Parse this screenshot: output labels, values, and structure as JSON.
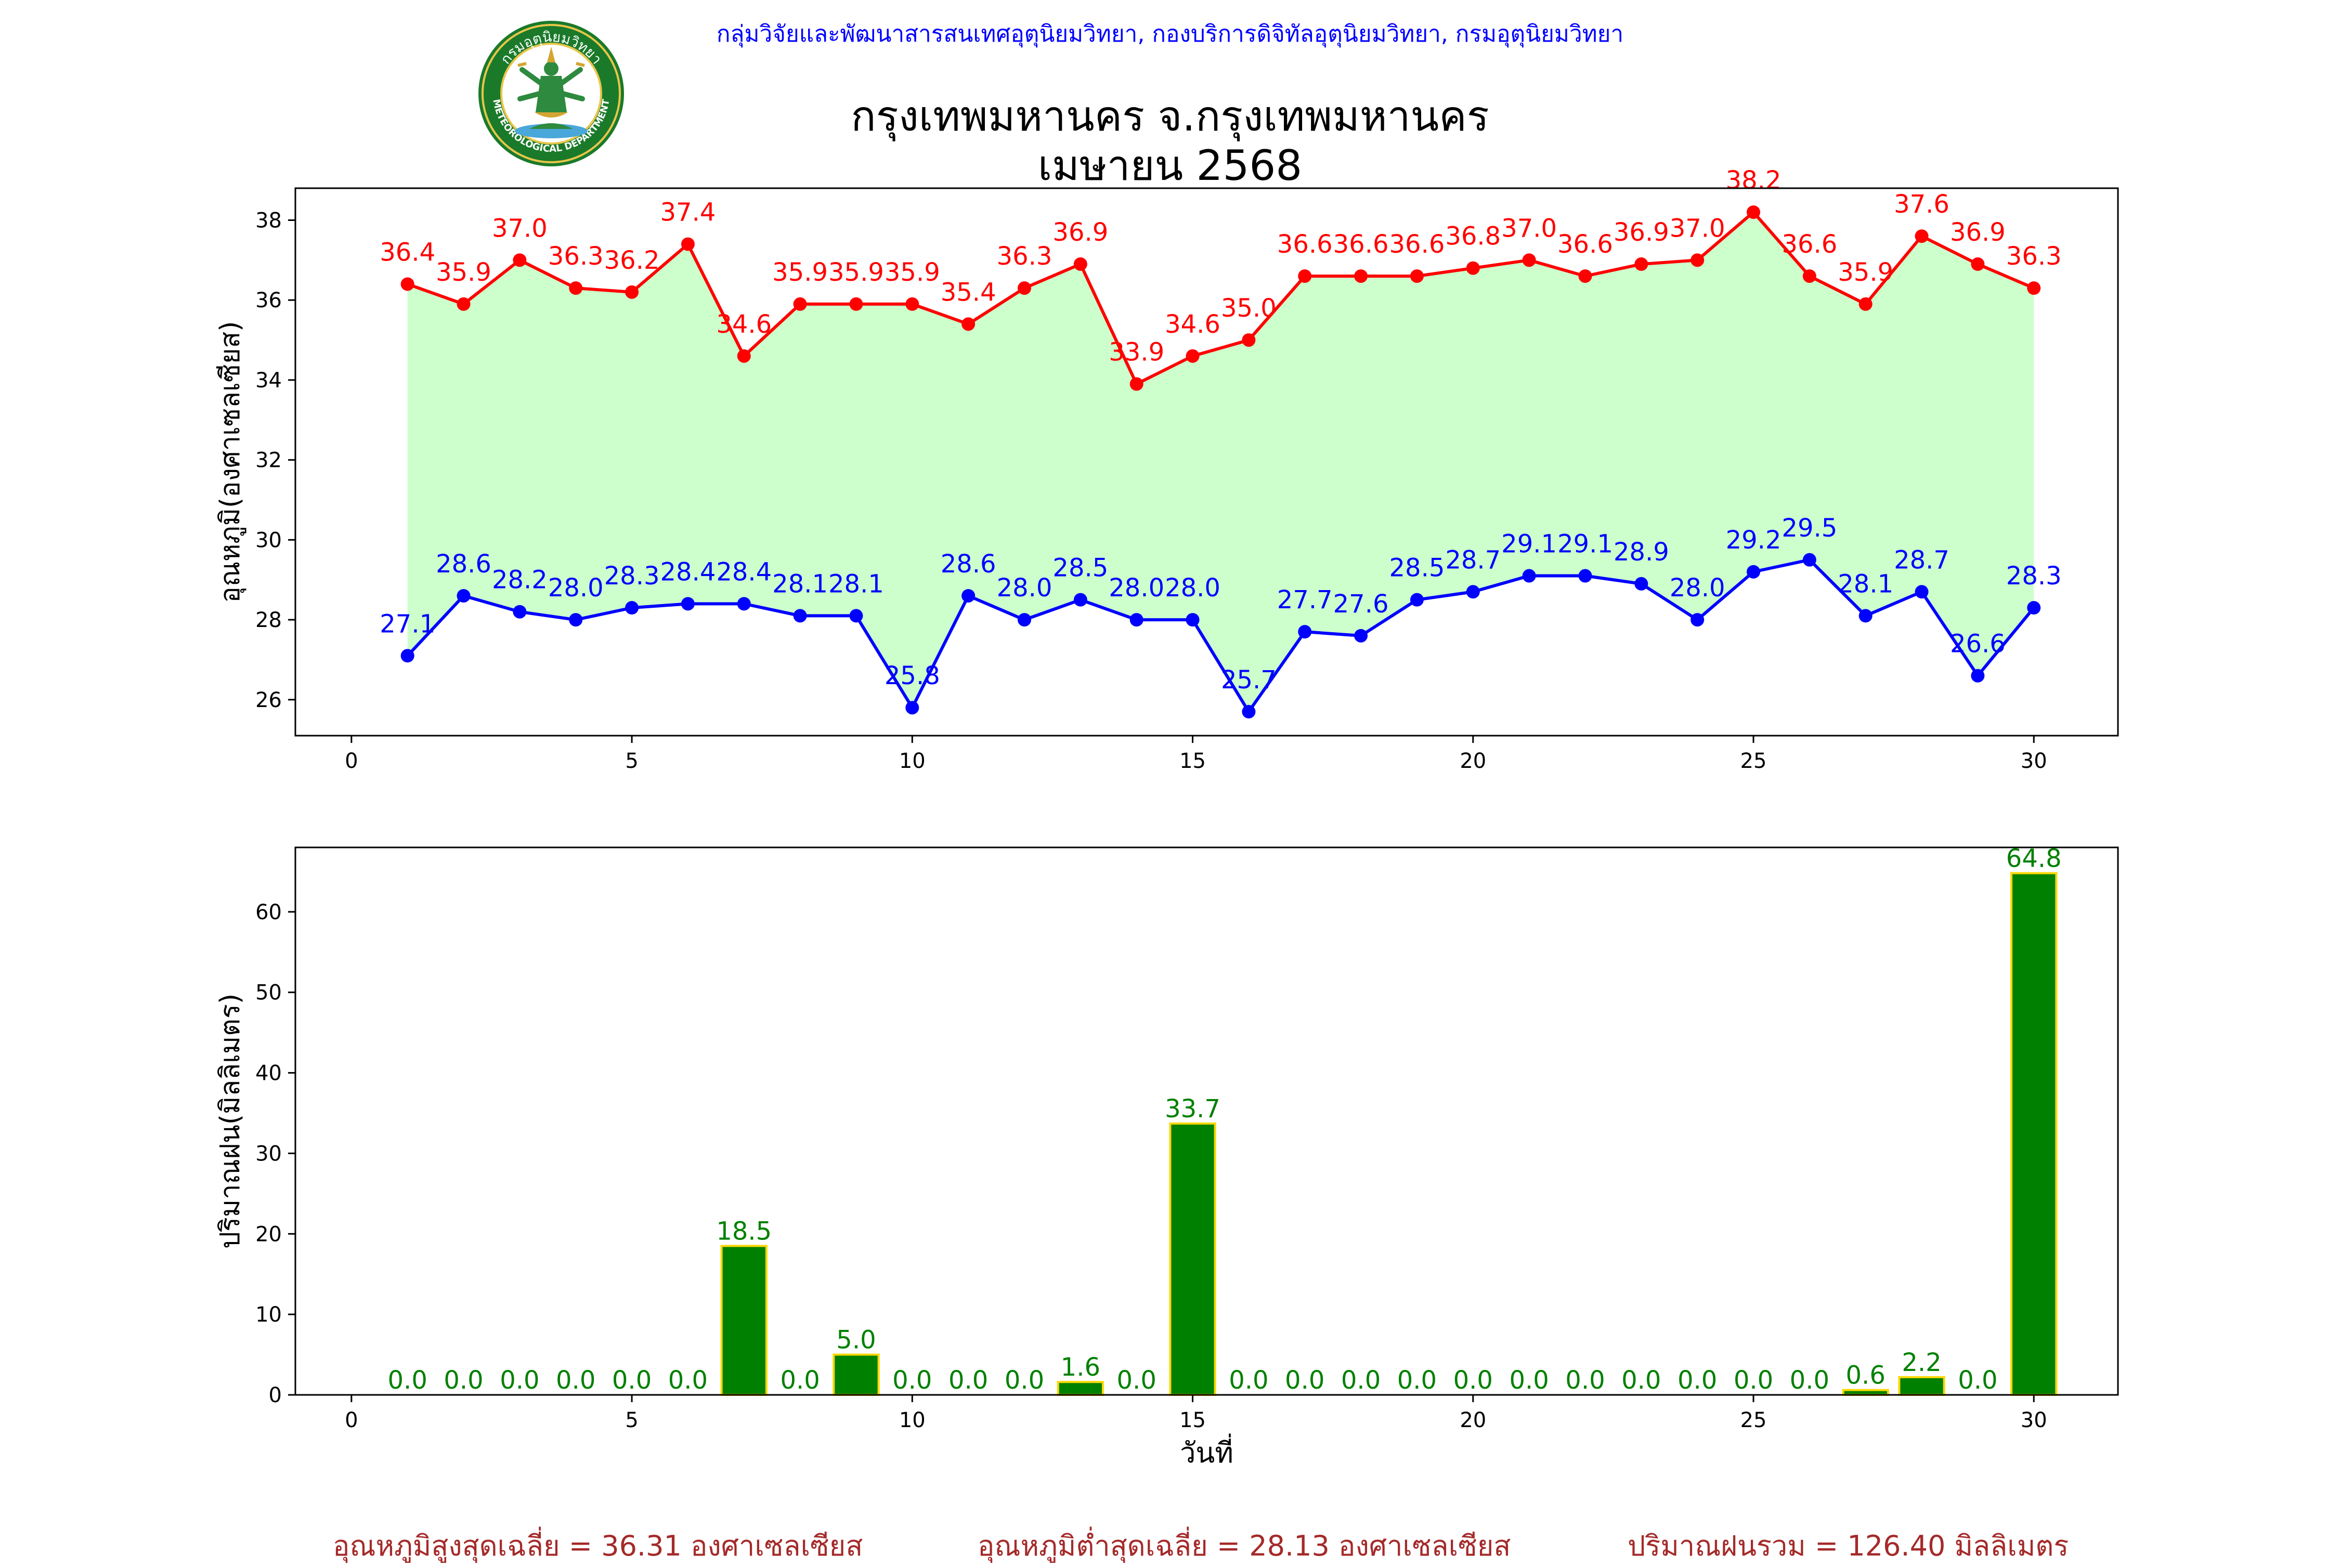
{
  "header": {
    "org": "กลุ่มวิจัยและพัฒนาสารสนเทศอุตุนิยมวิทยา, กองบริการดิจิทัลอุตุนิยมวิทยา, กรมอุตุนิยมวิทยา",
    "title": "กรุงเทพมหานคร จ.กรุงเทพมหานคร",
    "subtitle": "เมษายน 2568",
    "logo_text": "กรมอุตุนิยมวิทยา",
    "logo_text_en": "METEOROLOGICAL DEPARTMENT"
  },
  "colors": {
    "max_line": "#ff0000",
    "min_line": "#0000ff",
    "fill": "#ccffcc",
    "bar_fill": "#008000",
    "bar_edge": "#ffd700",
    "bar_label": "#008000",
    "summary": "#a52a2a"
  },
  "chart_data": [
    {
      "type": "line",
      "ylabel": "อุณหภูมิ(องศาเซลเซียส)",
      "xlabel": "",
      "xlim": [
        -1,
        31.5
      ],
      "ylim": [
        25.1,
        38.8
      ],
      "xticks": [
        0,
        5,
        10,
        15,
        20,
        25,
        30
      ],
      "yticks": [
        26,
        28,
        30,
        32,
        34,
        36,
        38
      ],
      "grid": false,
      "x": [
        1,
        2,
        3,
        4,
        5,
        6,
        7,
        8,
        9,
        10,
        11,
        12,
        13,
        14,
        15,
        16,
        17,
        18,
        19,
        20,
        21,
        22,
        23,
        24,
        25,
        26,
        27,
        28,
        29,
        30
      ],
      "series": [
        {
          "values": [
            36.4,
            35.9,
            37.0,
            36.3,
            36.2,
            37.4,
            34.6,
            35.9,
            35.9,
            35.9,
            35.4,
            36.3,
            36.9,
            33.9,
            34.6,
            35.0,
            36.6,
            36.6,
            36.6,
            36.8,
            37.0,
            36.6,
            36.9,
            37.0,
            38.2,
            36.6,
            35.9,
            37.6,
            36.9,
            36.3
          ],
          "labels": [
            "36.4",
            "35.9",
            "37.0",
            "36.3",
            "36.2",
            "37.4",
            "34.6",
            "35.9",
            "35.9",
            "35.9",
            "35.4",
            "36.3",
            "36.9",
            "33.9",
            "34.6",
            "35.0",
            "36.6",
            "36.6",
            "36.6",
            "36.8",
            "37.0",
            "36.6",
            "36.9",
            "37.0",
            "38.2",
            "36.6",
            "35.9",
            "37.6",
            "36.9",
            "36.3"
          ]
        },
        {
          "values": [
            27.1,
            28.6,
            28.2,
            28.0,
            28.3,
            28.4,
            28.4,
            28.1,
            28.1,
            25.8,
            28.6,
            28.0,
            28.5,
            28.0,
            28.0,
            25.7,
            27.7,
            27.6,
            28.5,
            28.7,
            29.1,
            29.1,
            28.9,
            28.0,
            29.2,
            29.5,
            28.1,
            28.7,
            26.6,
            28.3
          ],
          "labels": [
            "27.1",
            "28.6",
            "28.2",
            "28.0",
            "28.3",
            "28.4",
            "28.4",
            "28.1",
            "28.1",
            "25.8",
            "28.6",
            "28.0",
            "28.5",
            "28.0",
            "28.0",
            "25.7",
            "27.7",
            "27.6",
            "28.5",
            "28.7",
            "29.1",
            "29.1",
            "28.9",
            "28.0",
            "29.2",
            "29.5",
            "28.1",
            "28.7",
            "26.6",
            "28.3"
          ]
        }
      ],
      "xtick_labels": [
        "0",
        "5",
        "10",
        "15",
        "20",
        "25",
        "30"
      ],
      "ytick_labels": [
        "26",
        "28",
        "30",
        "32",
        "34",
        "36",
        "38"
      ]
    },
    {
      "type": "bar",
      "ylabel": "ปริมาณฝน(มิลลิเมตร)",
      "xlabel": "วันที่",
      "xlim": [
        -1,
        31.5
      ],
      "ylim": [
        0,
        68
      ],
      "xticks": [
        0,
        5,
        10,
        15,
        20,
        25,
        30
      ],
      "yticks": [
        0,
        10,
        20,
        30,
        40,
        50,
        60
      ],
      "grid": false,
      "x": [
        1,
        2,
        3,
        4,
        5,
        6,
        7,
        8,
        9,
        10,
        11,
        12,
        13,
        14,
        15,
        16,
        17,
        18,
        19,
        20,
        21,
        22,
        23,
        24,
        25,
        26,
        27,
        28,
        29,
        30
      ],
      "values": [
        0.0,
        0.0,
        0.0,
        0.0,
        0.0,
        0.0,
        18.5,
        0.0,
        5.0,
        0.0,
        0.0,
        0.0,
        1.6,
        0.0,
        33.7,
        0.0,
        0.0,
        0.0,
        0.0,
        0.0,
        0.0,
        0.0,
        0.0,
        0.0,
        0.0,
        0.0,
        0.6,
        2.2,
        0.0,
        64.8
      ],
      "labels": [
        "0.0",
        "0.0",
        "0.0",
        "0.0",
        "0.0",
        "0.0",
        "18.5",
        "0.0",
        "5.0",
        "0.0",
        "0.0",
        "0.0",
        "1.6",
        "0.0",
        "33.7",
        "0.0",
        "0.0",
        "0.0",
        "0.0",
        "0.0",
        "0.0",
        "0.0",
        "0.0",
        "0.0",
        "0.0",
        "0.0",
        "0.6",
        "2.2",
        "0.0",
        "64.8"
      ],
      "xtick_labels": [
        "0",
        "5",
        "10",
        "15",
        "20",
        "25",
        "30"
      ],
      "ytick_labels": [
        "0",
        "10",
        "20",
        "30",
        "40",
        "50",
        "60"
      ]
    }
  ],
  "summary": {
    "avg_max": "อุณหภูมิสูงสุดเฉลี่ย = 36.31 องศาเซลเซียส",
    "avg_min": "อุณหภูมิต่ำสุดเฉลี่ย = 28.13 องศาเซลเซียส",
    "total_rain": "ปริมาณฝนรวม = 126.40 มิลลิเมตร"
  }
}
